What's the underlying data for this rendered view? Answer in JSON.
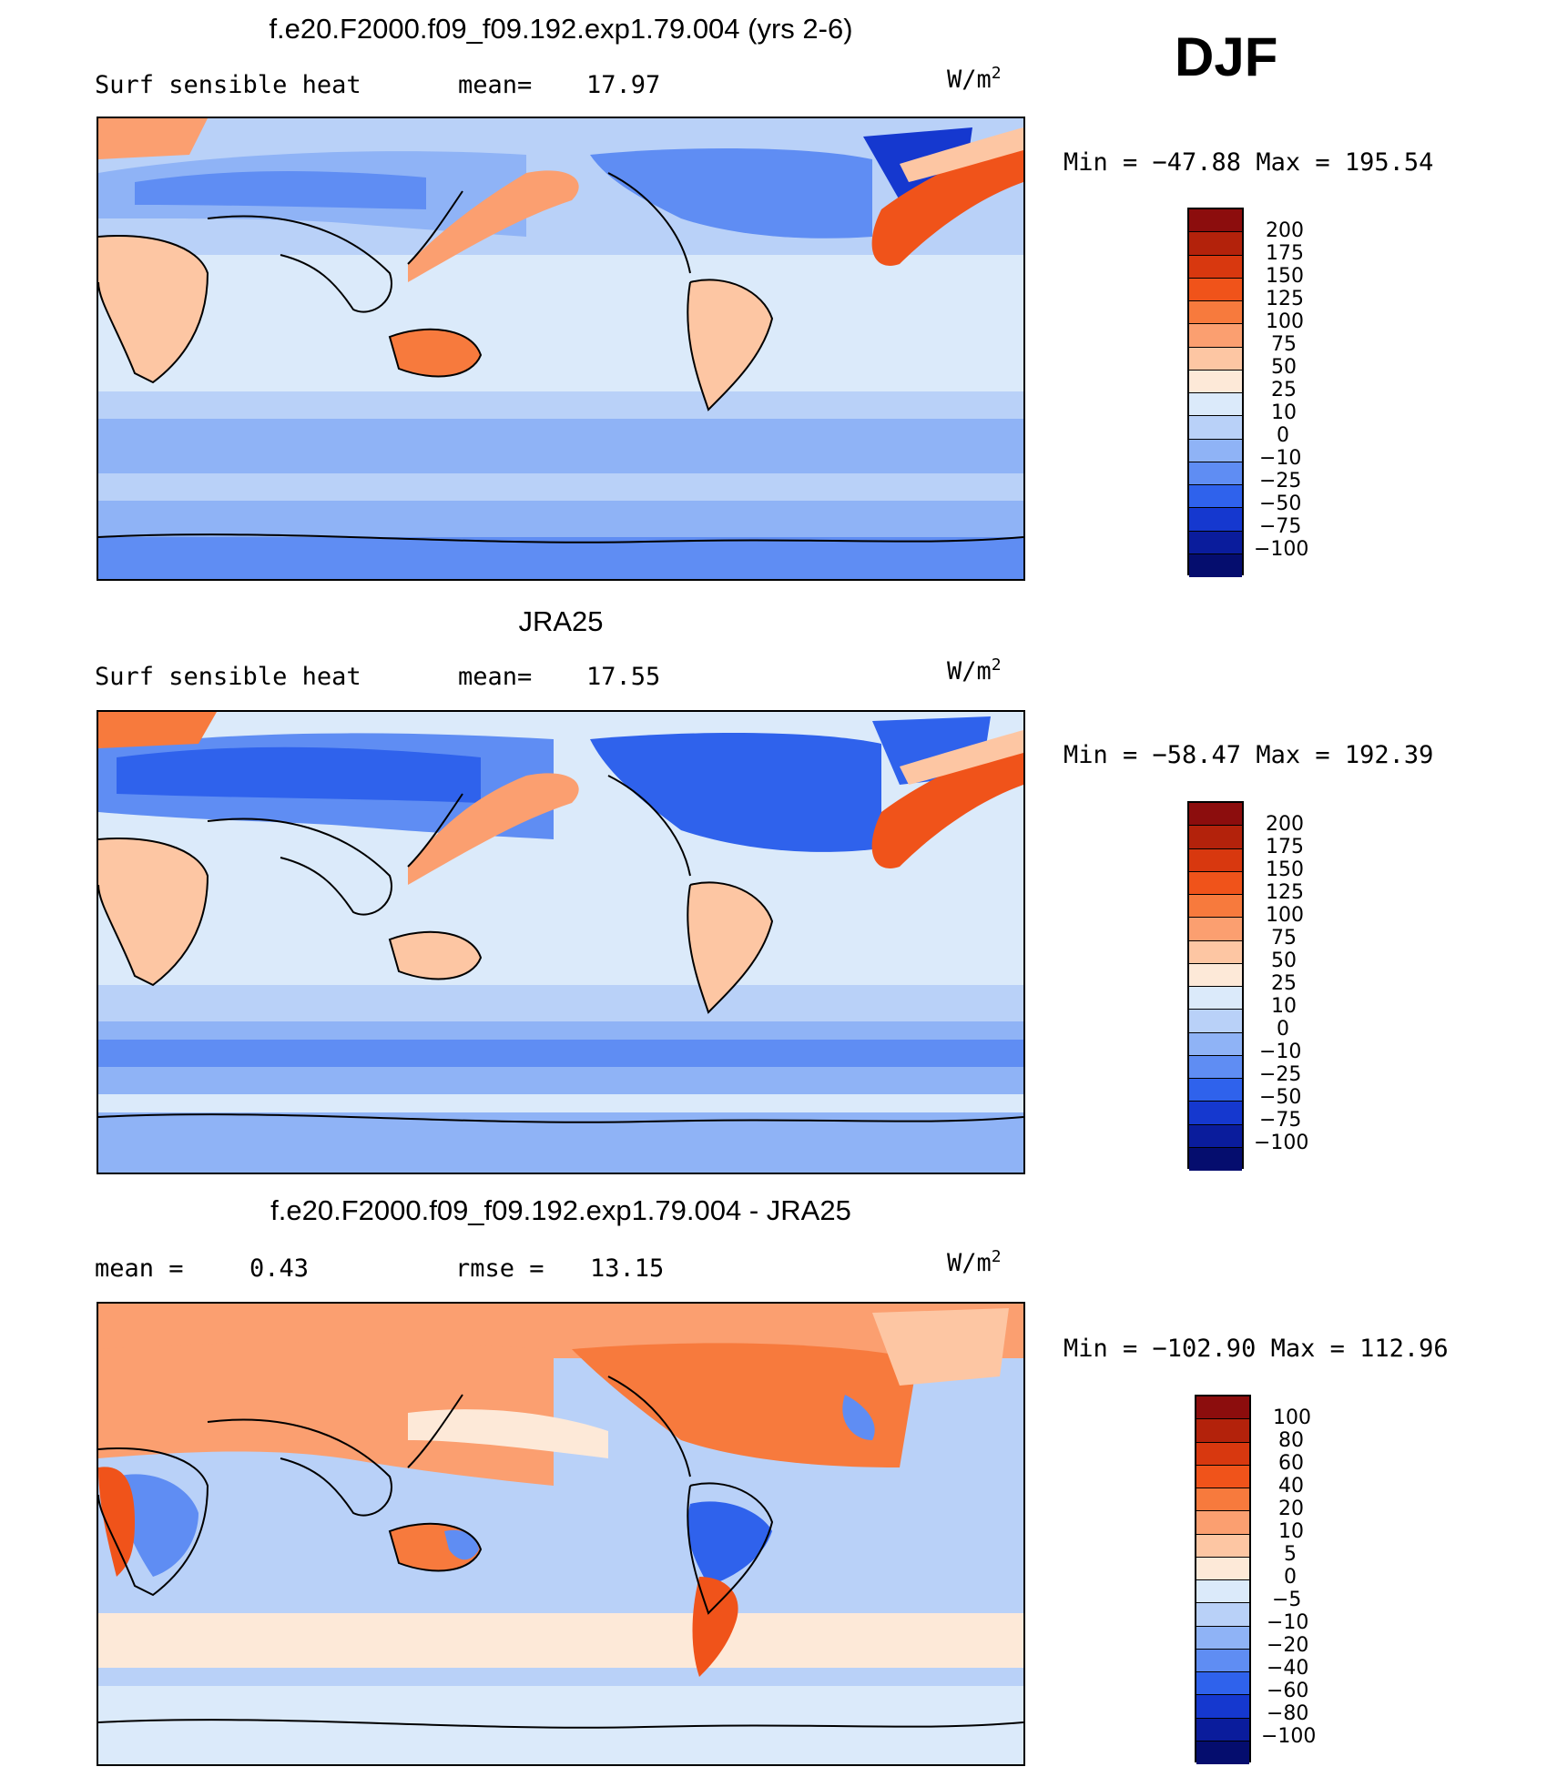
{
  "season": "DJF",
  "panels": [
    {
      "title": "f.e20.F2000.f09_f09.192.exp1.79.004 (yrs 2-6)",
      "left_text": "Surf  sensible  heat",
      "stat_label": "mean=",
      "stat_value": "17.97",
      "unit": "W/m",
      "unit_sup": "2",
      "min_max": "Min  =  −47.88  Max  =  195.54",
      "levels": [
        "200",
        "175",
        "150",
        "125",
        "100",
        "75",
        "50",
        "25",
        "10",
        "0",
        "−10",
        "−25",
        "−50",
        "−75",
        "−100"
      ],
      "colors": [
        "#8c0d0d",
        "#b3220b",
        "#d8380f",
        "#f0531a",
        "#f77a3d",
        "#fb9f70",
        "#fdc6a3",
        "#fde9d8",
        "#dbeafa",
        "#b9d1f8",
        "#8fb3f6",
        "#5f8df3",
        "#2f62ec",
        "#1538cf",
        "#0a1c9c",
        "#050d6e"
      ],
      "chart_data": {
        "type": "heatmap",
        "title": "f.e20.F2000.f09_f09.192.exp1.79.004 (yrs 2-6)",
        "variable": "Surf  sensible  heat",
        "mean": 17.97,
        "units": "W/m2",
        "min": -47.88,
        "max": 195.54,
        "contour_levels": [
          -100,
          -75,
          -50,
          -25,
          -10,
          0,
          10,
          25,
          50,
          75,
          100,
          125,
          150,
          175,
          200
        ],
        "projection": "cylindrical equidistant, Pacific-centered"
      }
    },
    {
      "title": "JRA25",
      "left_text": "Surf  sensible  heat",
      "stat_label": "mean=",
      "stat_value": "17.55",
      "unit": "W/m",
      "unit_sup": "2",
      "min_max": "Min  =  −58.47  Max  =  192.39",
      "levels": [
        "200",
        "175",
        "150",
        "125",
        "100",
        "75",
        "50",
        "25",
        "10",
        "0",
        "−10",
        "−25",
        "−50",
        "−75",
        "−100"
      ],
      "colors": [
        "#8c0d0d",
        "#b3220b",
        "#d8380f",
        "#f0531a",
        "#f77a3d",
        "#fb9f70",
        "#fdc6a3",
        "#fde9d8",
        "#dbeafa",
        "#b9d1f8",
        "#8fb3f6",
        "#5f8df3",
        "#2f62ec",
        "#1538cf",
        "#0a1c9c",
        "#050d6e"
      ],
      "chart_data": {
        "type": "heatmap",
        "title": "JRA25",
        "variable": "Surf  sensible  heat",
        "mean": 17.55,
        "units": "W/m2",
        "min": -58.47,
        "max": 192.39,
        "contour_levels": [
          -100,
          -75,
          -50,
          -25,
          -10,
          0,
          10,
          25,
          50,
          75,
          100,
          125,
          150,
          175,
          200
        ],
        "projection": "cylindrical equidistant, Pacific-centered"
      }
    },
    {
      "title": "f.e20.F2000.f09_f09.192.exp1.79.004 - JRA25",
      "left_text": "mean  =",
      "left_value": "0.43",
      "stat_label": "rmse  =",
      "stat_value": "13.15",
      "unit": "W/m",
      "unit_sup": "2",
      "min_max": "Min  =  −102.90  Max  =  112.96",
      "levels": [
        "100",
        "80",
        "60",
        "40",
        "20",
        "10",
        "5",
        "0",
        "−5",
        "−10",
        "−20",
        "−40",
        "−60",
        "−80",
        "−100"
      ],
      "colors": [
        "#8c0d0d",
        "#b3220b",
        "#d8380f",
        "#f0531a",
        "#f77a3d",
        "#fb9f70",
        "#fdc6a3",
        "#fde9d8",
        "#dbeafa",
        "#b9d1f8",
        "#8fb3f6",
        "#5f8df3",
        "#2f62ec",
        "#1538cf",
        "#0a1c9c",
        "#050d6e"
      ],
      "chart_data": {
        "type": "heatmap",
        "title": "f.e20.F2000.f09_f09.192.exp1.79.004 - JRA25",
        "mean": 0.43,
        "rmse": 13.15,
        "units": "W/m2",
        "min": -102.9,
        "max": 112.96,
        "contour_levels": [
          -100,
          -80,
          -60,
          -40,
          -20,
          -10,
          -5,
          0,
          5,
          10,
          20,
          40,
          60,
          80,
          100
        ],
        "projection": "cylindrical equidistant, Pacific-centered"
      }
    }
  ]
}
